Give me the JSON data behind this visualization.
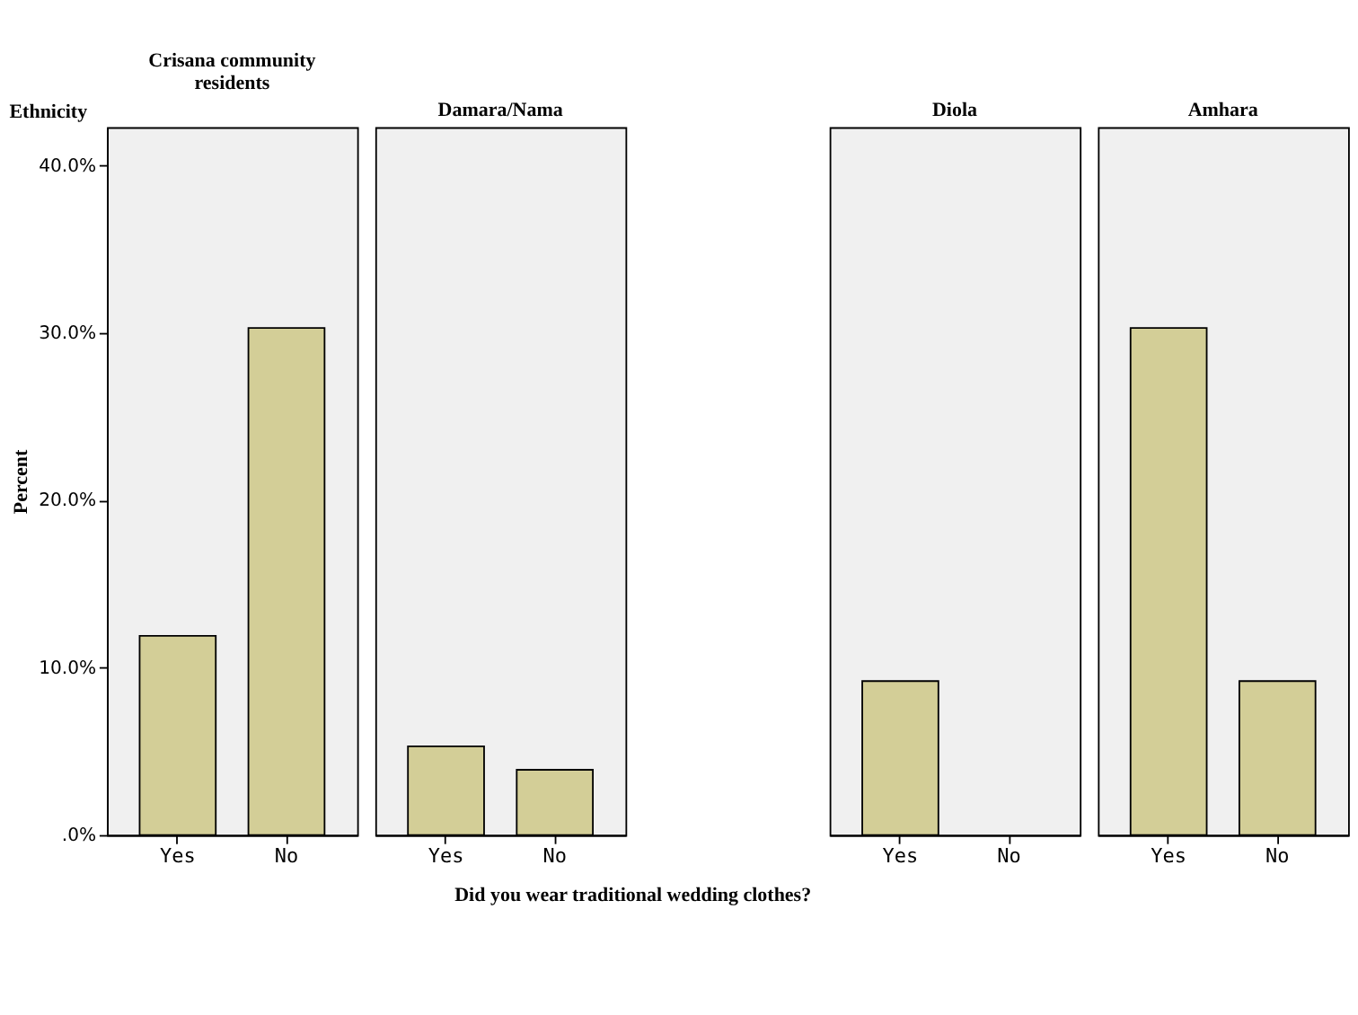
{
  "chart_data": [
    {
      "type": "bar",
      "title": "Crisana community residents",
      "ylabel": "Percent",
      "annotations": [
        "Ethnicity"
      ],
      "categories": [
        "Yes",
        "No"
      ],
      "values": [
        11.9,
        30.3
      ],
      "color": "#d3ce97",
      "ylim": [
        0,
        42.3
      ],
      "yticks": [
        {
          "value": 0,
          "label": ".0%"
        },
        {
          "value": 10,
          "label": "10.0%"
        },
        {
          "value": 20,
          "label": "20.0%"
        },
        {
          "value": 30,
          "label": "30.0%"
        },
        {
          "value": 40,
          "label": "40.0%"
        }
      ],
      "grid": false
    },
    {
      "type": "bar",
      "title": "Damara/Nama",
      "xlabel": "Did you wear traditional wedding clothes?",
      "categories": [
        "Yes",
        "No"
      ],
      "values": [
        5.3,
        3.9
      ],
      "color": "#d3ce97",
      "ylim": [
        0,
        42.3
      ],
      "tick_labels": "x",
      "grid": false
    },
    {
      "type": "bar",
      "title": "Diola",
      "categories": [
        "Yes",
        "No"
      ],
      "values": [
        9.2,
        0
      ],
      "color": "#d3ce97",
      "ylim": [
        0,
        42.3
      ],
      "tick_labels": "x",
      "grid": false
    },
    {
      "type": "bar",
      "title": "Amhara",
      "categories": [
        "Yes",
        "No"
      ],
      "values": [
        30.3,
        9.2
      ],
      "color": "#d3ce97",
      "ylim": [
        0,
        42.3
      ],
      "tick_labels": "x",
      "grid": false
    }
  ]
}
